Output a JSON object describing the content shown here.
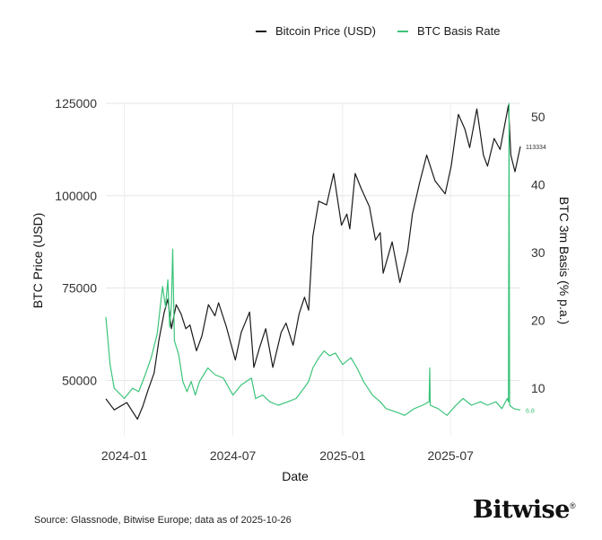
{
  "chart_data": {
    "type": "line",
    "xlabel": "Date",
    "ylabel_left": "BTC Price (USD)",
    "ylabel_right": "BTC 3m Basis (% p.a.)",
    "x_range": [
      "2023-12-01",
      "2025-10-26"
    ],
    "x_ticks": [
      "2024-01",
      "2024-07",
      "2025-01",
      "2025-07"
    ],
    "y_left_range": [
      35000,
      125000
    ],
    "y_left_ticks": [
      50000,
      75000,
      100000,
      125000
    ],
    "y_right_range": [
      3,
      52
    ],
    "y_right_ticks": [
      10,
      20,
      30,
      40,
      50
    ],
    "grid": true,
    "legend_position": "top-right",
    "series": [
      {
        "name": "Bitcoin Price (USD)",
        "color": "#1a1a1a",
        "axis": "left",
        "end_label": "113334",
        "points": [
          [
            "2023-12-01",
            45000
          ],
          [
            "2023-12-15",
            42000
          ],
          [
            "2024-01-05",
            44000
          ],
          [
            "2024-01-15",
            41500
          ],
          [
            "2024-01-23",
            39500
          ],
          [
            "2024-02-01",
            43000
          ],
          [
            "2024-02-10",
            47500
          ],
          [
            "2024-02-20",
            52000
          ],
          [
            "2024-02-28",
            61000
          ],
          [
            "2024-03-08",
            68500
          ],
          [
            "2024-03-14",
            72000
          ],
          [
            "2024-03-20",
            64000
          ],
          [
            "2024-03-28",
            70500
          ],
          [
            "2024-04-05",
            68000
          ],
          [
            "2024-04-13",
            64000
          ],
          [
            "2024-04-20",
            65000
          ],
          [
            "2024-05-01",
            58000
          ],
          [
            "2024-05-10",
            62000
          ],
          [
            "2024-05-21",
            70500
          ],
          [
            "2024-06-01",
            67500
          ],
          [
            "2024-06-07",
            71000
          ],
          [
            "2024-06-20",
            64500
          ],
          [
            "2024-07-05",
            55500
          ],
          [
            "2024-07-15",
            63000
          ],
          [
            "2024-07-29",
            68500
          ],
          [
            "2024-08-05",
            53500
          ],
          [
            "2024-08-15",
            59000
          ],
          [
            "2024-08-25",
            64000
          ],
          [
            "2024-09-06",
            53500
          ],
          [
            "2024-09-20",
            63000
          ],
          [
            "2024-09-28",
            65500
          ],
          [
            "2024-10-10",
            59500
          ],
          [
            "2024-10-20",
            68000
          ],
          [
            "2024-10-29",
            72500
          ],
          [
            "2024-11-05",
            69000
          ],
          [
            "2024-11-12",
            89000
          ],
          [
            "2024-11-22",
            98500
          ],
          [
            "2024-12-05",
            97500
          ],
          [
            "2024-12-17",
            106000
          ],
          [
            "2024-12-30",
            92000
          ],
          [
            "2025-01-08",
            95000
          ],
          [
            "2025-01-13",
            91000
          ],
          [
            "2025-01-22",
            106000
          ],
          [
            "2025-02-01",
            102000
          ],
          [
            "2025-02-15",
            97000
          ],
          [
            "2025-02-25",
            88000
          ],
          [
            "2025-03-05",
            90000
          ],
          [
            "2025-03-10",
            79000
          ],
          [
            "2025-03-25",
            87500
          ],
          [
            "2025-04-07",
            76500
          ],
          [
            "2025-04-20",
            85000
          ],
          [
            "2025-04-28",
            95000
          ],
          [
            "2025-05-10",
            103500
          ],
          [
            "2025-05-22",
            111000
          ],
          [
            "2025-06-05",
            104000
          ],
          [
            "2025-06-22",
            100500
          ],
          [
            "2025-07-02",
            108000
          ],
          [
            "2025-07-14",
            122000
          ],
          [
            "2025-07-25",
            118000
          ],
          [
            "2025-08-02",
            113000
          ],
          [
            "2025-08-14",
            123500
          ],
          [
            "2025-08-25",
            111000
          ],
          [
            "2025-09-01",
            108000
          ],
          [
            "2025-09-12",
            115500
          ],
          [
            "2025-09-22",
            112500
          ],
          [
            "2025-10-06",
            124500
          ],
          [
            "2025-10-10",
            111000
          ],
          [
            "2025-10-17",
            106500
          ],
          [
            "2025-10-26",
            113334
          ]
        ]
      },
      {
        "name": "BTC Basis Rate",
        "color": "#3cc47a",
        "axis": "right",
        "end_label": "6.8",
        "points": [
          [
            "2023-12-01",
            20.5
          ],
          [
            "2023-12-08",
            13.5
          ],
          [
            "2023-12-15",
            10.0
          ],
          [
            "2024-01-01",
            8.5
          ],
          [
            "2024-01-15",
            10.0
          ],
          [
            "2024-01-25",
            9.5
          ],
          [
            "2024-02-05",
            12.0
          ],
          [
            "2024-02-15",
            14.5
          ],
          [
            "2024-02-25",
            18.0
          ],
          [
            "2024-03-05",
            25.0
          ],
          [
            "2024-03-10",
            22.0
          ],
          [
            "2024-03-14",
            26.0
          ],
          [
            "2024-03-17",
            19.0
          ],
          [
            "2024-03-20",
            22.5
          ],
          [
            "2024-03-22",
            30.5
          ],
          [
            "2024-03-25",
            17.0
          ],
          [
            "2024-04-01",
            15.0
          ],
          [
            "2024-04-08",
            11.0
          ],
          [
            "2024-04-15",
            9.5
          ],
          [
            "2024-04-22",
            11.0
          ],
          [
            "2024-04-29",
            9.0
          ],
          [
            "2024-05-06",
            11.0
          ],
          [
            "2024-05-20",
            13.0
          ],
          [
            "2024-06-01",
            12.0
          ],
          [
            "2024-06-15",
            11.5
          ],
          [
            "2024-07-01",
            9.0
          ],
          [
            "2024-07-15",
            10.5
          ],
          [
            "2024-08-01",
            11.5
          ],
          [
            "2024-08-08",
            8.5
          ],
          [
            "2024-08-20",
            9.0
          ],
          [
            "2024-09-01",
            8.0
          ],
          [
            "2024-09-15",
            7.5
          ],
          [
            "2024-10-01",
            8.0
          ],
          [
            "2024-10-15",
            8.5
          ],
          [
            "2024-10-28",
            10.0
          ],
          [
            "2024-11-05",
            11.0
          ],
          [
            "2024-11-12",
            13.0
          ],
          [
            "2024-11-22",
            14.5
          ],
          [
            "2024-12-01",
            15.5
          ],
          [
            "2024-12-10",
            14.8
          ],
          [
            "2024-12-20",
            15.2
          ],
          [
            "2025-01-01",
            13.5
          ],
          [
            "2025-01-15",
            14.5
          ],
          [
            "2025-01-25",
            13.0
          ],
          [
            "2025-02-05",
            11.0
          ],
          [
            "2025-02-20",
            9.0
          ],
          [
            "2025-03-05",
            8.0
          ],
          [
            "2025-03-15",
            7.0
          ],
          [
            "2025-04-01",
            6.5
          ],
          [
            "2025-04-15",
            6.0
          ],
          [
            "2025-05-01",
            7.0
          ],
          [
            "2025-05-15",
            7.5
          ],
          [
            "2025-05-26",
            8.0
          ],
          [
            "2025-05-27",
            13.0
          ],
          [
            "2025-05-28",
            7.5
          ],
          [
            "2025-06-10",
            7.0
          ],
          [
            "2025-06-25",
            6.0
          ],
          [
            "2025-07-10",
            7.5
          ],
          [
            "2025-07-22",
            8.5
          ],
          [
            "2025-08-05",
            7.5
          ],
          [
            "2025-08-20",
            8.0
          ],
          [
            "2025-09-01",
            7.5
          ],
          [
            "2025-09-15",
            8.0
          ],
          [
            "2025-09-25",
            7.0
          ],
          [
            "2025-10-04",
            8.5
          ],
          [
            "2025-10-06",
            8.0
          ],
          [
            "2025-10-07",
            52.0
          ],
          [
            "2025-10-08",
            7.5
          ],
          [
            "2025-10-15",
            7.0
          ],
          [
            "2025-10-26",
            6.8
          ]
        ]
      }
    ]
  },
  "source_text": "Source: Glassnode, Bitwise Europe; data as of 2025-10-26",
  "logo_text": "Bitwise",
  "logo_mark": "®"
}
